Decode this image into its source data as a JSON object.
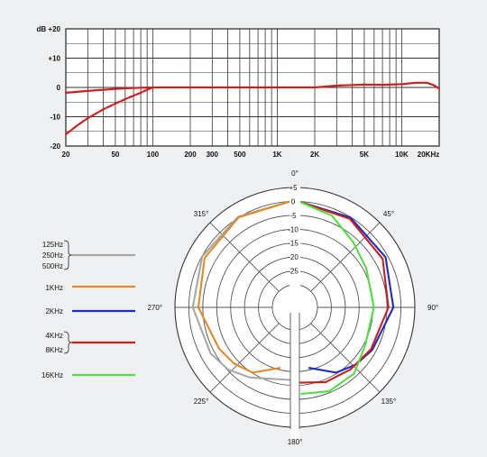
{
  "chart_data": [
    {
      "type": "line",
      "x_scale": "log",
      "x_ticks": [
        20,
        50,
        100,
        200,
        300,
        500,
        1000,
        2000,
        5000,
        10000,
        20000
      ],
      "x_tick_labels": [
        "20",
        "50",
        "100",
        "200",
        "300",
        "500",
        "1K",
        "2K",
        "5K",
        "10K",
        "20KHz"
      ],
      "y_ticks": [
        20,
        10,
        0,
        -10,
        -20
      ],
      "y_tick_labels": [
        "dB +20",
        "+10",
        "0",
        "-10",
        "-20"
      ],
      "ylim": [
        -20,
        20
      ],
      "xlim": [
        20,
        20000
      ],
      "grid": true,
      "series": [
        {
          "color": "#cc1f1f",
          "x": [
            20,
            30,
            40,
            50,
            60,
            70,
            80,
            100,
            150,
            200,
            500,
            1000,
            2000,
            3000,
            5000,
            7000,
            10000,
            13000,
            16000,
            18000,
            20000
          ],
          "values": [
            -1.8,
            -1.2,
            -0.8,
            -0.5,
            -0.3,
            -0.2,
            -0.1,
            0,
            0,
            0,
            0,
            0,
            0,
            0.6,
            1.0,
            0.9,
            1.1,
            1.6,
            1.6,
            0.8,
            -0.4
          ]
        },
        {
          "color": "#cc1f1f",
          "dashed": true,
          "x": [
            20,
            25,
            30,
            40,
            50,
            60,
            70,
            80,
            90,
            100
          ],
          "values": [
            -16,
            -12.8,
            -10.5,
            -7.5,
            -5.5,
            -4,
            -2.8,
            -1.8,
            -0.8,
            0
          ]
        }
      ]
    },
    {
      "type": "polar",
      "angle_labels": [
        "0°",
        "45°",
        "90°",
        "135°",
        "180°",
        "225°",
        "270°",
        "315°"
      ],
      "radial_ticks": [
        5,
        0,
        -5,
        -10,
        -15,
        -20,
        -25
      ],
      "radial_tick_labels": [
        "+5",
        "0",
        "-5",
        "-10",
        "-15",
        "-20",
        "-25"
      ],
      "legend": [
        {
          "labels": [
            "125Hz",
            "250Hz",
            "500Hz"
          ],
          "color": "#a8a8a8"
        },
        {
          "labels": [
            "1KHz"
          ],
          "color": "#e08a2a"
        },
        {
          "labels": [
            "2KHz"
          ],
          "color": "#1a2fbf"
        },
        {
          "labels": [
            "4KHz",
            "8KHz"
          ],
          "color": "#cc1f1f"
        },
        {
          "labels": [
            "16KHz"
          ],
          "color": "#55dd44"
        }
      ],
      "series": [
        {
          "name": "125Hz / 250Hz / 500Hz",
          "color": "#a8a8a8",
          "side": "left",
          "angles": [
            0,
            30,
            60,
            90,
            120,
            135,
            150,
            180
          ],
          "values_db": [
            0,
            -0.5,
            -1.5,
            -3,
            -5,
            -6.5,
            -9,
            -12
          ]
        },
        {
          "name": "1KHz",
          "color": "#e08a2a",
          "side": "left",
          "angles": [
            0,
            30,
            60,
            90,
            120,
            135,
            150,
            170
          ],
          "values_db": [
            0,
            -0.8,
            -2.5,
            -5,
            -8.5,
            -9.5,
            -11,
            -16
          ]
        },
        {
          "name": "2KHz",
          "color": "#1a2fbf",
          "side": "right",
          "angles": [
            0,
            30,
            60,
            90,
            120,
            135,
            150,
            170
          ],
          "values_db": [
            0,
            -0.8,
            -2,
            -4,
            -7.5,
            -9,
            -11,
            -16
          ]
        },
        {
          "name": "4KHz / 8KHz",
          "color": "#cc1f1f",
          "side": "right",
          "angles": [
            0,
            30,
            60,
            90,
            120,
            140,
            160,
            180
          ],
          "values_db": [
            0,
            -1.3,
            -3.2,
            -5.8,
            -8,
            -9,
            -9.5,
            -11
          ]
        },
        {
          "name": "16KHz",
          "color": "#55dd44",
          "side": "right",
          "angles": [
            0,
            20,
            40,
            60,
            90,
            120,
            140,
            160,
            178
          ],
          "values_db": [
            0,
            -3,
            -7.5,
            -10,
            -11,
            -10.5,
            -7,
            -6,
            -7
          ]
        }
      ]
    }
  ]
}
